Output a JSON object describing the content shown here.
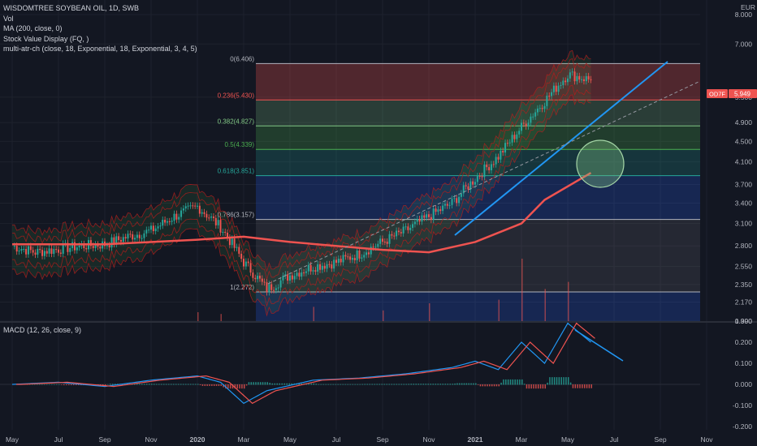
{
  "header": {
    "title": "WISDOMTREE SOYBEAN OIL, 1D, SWB",
    "indicators": [
      "Vol",
      "MA (200, close, 0)",
      "Stock Value Display (FQ, )",
      "multi-atr-ch (close, 18, Exponential, 18, Exponential, 3, 4, 5)"
    ],
    "currency": "EUR",
    "price_badge": {
      "ticker": "OD7F",
      "value": "5.949",
      "color": "#ef5350"
    }
  },
  "macd_panel": {
    "title": "MACD (12, 26, close, 9)",
    "y_ticks": [
      "0.300",
      "0.200",
      "0.100",
      "0.000",
      "-0.100",
      "-0.200"
    ]
  },
  "colors": {
    "background": "#131722",
    "ma200": "#ef5350",
    "trendline": "#2196f3",
    "macd_line": "#2196f3",
    "signal_line": "#ef5350",
    "candle_up": "#26a69a",
    "candle_down": "#ef5350"
  },
  "chart_data": {
    "type": "candlestick",
    "x_ticks": [
      "May",
      "Jul",
      "Sep",
      "Nov",
      "2020",
      "Mar",
      "May",
      "Jul",
      "Sep",
      "Nov",
      "2021",
      "Mar",
      "May",
      "Jul",
      "Sep",
      "Nov"
    ],
    "y_ticks": [
      "8.000",
      "7.000",
      "5.500",
      "4.900",
      "4.500",
      "4.100",
      "3.700",
      "3.400",
      "3.100",
      "2.800",
      "2.550",
      "2.350",
      "2.170",
      "1.990"
    ],
    "y_scale": "log",
    "ylim": [
      1.99,
      8.0
    ],
    "fib_levels": [
      {
        "label": "0(6.406)",
        "value": 6.406,
        "color": "#b2b5be"
      },
      {
        "label": "0.236(5.430)",
        "value": 5.43,
        "color": "#ef5350"
      },
      {
        "label": "0.382(4.827)",
        "value": 4.827,
        "color": "#81c784"
      },
      {
        "label": "0.5(4.339)",
        "value": 4.339,
        "color": "#4caf50"
      },
      {
        "label": "0.618(3.851)",
        "value": 3.851,
        "color": "#26a69a"
      },
      {
        "label": "0.786(3.157)",
        "value": 3.157,
        "color": "#b2b5be"
      },
      {
        "label": "1(2.272)",
        "value": 2.272,
        "color": "#b2b5be"
      }
    ],
    "price_series": [
      [
        "May 2019",
        2.8
      ],
      [
        "Jun 2019",
        2.72
      ],
      [
        "Jul 2019",
        2.76
      ],
      [
        "Aug 2019",
        2.8
      ],
      [
        "Sep 2019",
        2.82
      ],
      [
        "Oct 2019",
        2.92
      ],
      [
        "Nov 2019",
        3.0
      ],
      [
        "Dec 2019",
        3.2
      ],
      [
        "Jan 2020",
        3.35
      ],
      [
        "Feb 2020",
        3.05
      ],
      [
        "Mar 2020",
        2.6
      ],
      [
        "Apr 2020",
        2.3
      ],
      [
        "May 2020",
        2.45
      ],
      [
        "Jun 2020",
        2.55
      ],
      [
        "Jul 2020",
        2.6
      ],
      [
        "Aug 2020",
        2.7
      ],
      [
        "Sep 2020",
        2.85
      ],
      [
        "Oct 2020",
        3.0
      ],
      [
        "Nov 2020",
        3.2
      ],
      [
        "Dec 2020",
        3.4
      ],
      [
        "Jan 2021",
        3.8
      ],
      [
        "Feb 2021",
        4.2
      ],
      [
        "Mar 2021",
        4.8
      ],
      [
        "Apr 2021",
        5.4
      ],
      [
        "May 2021",
        6.1
      ],
      [
        "Jun 2021",
        5.95
      ]
    ],
    "ma200_series": [
      [
        "May 2019",
        2.82
      ],
      [
        "Sep 2019",
        2.82
      ],
      [
        "Jan 2020",
        2.88
      ],
      [
        "Mar 2020",
        2.92
      ],
      [
        "May 2020",
        2.85
      ],
      [
        "Sep 2020",
        2.75
      ],
      [
        "Nov 2020",
        2.72
      ],
      [
        "Jan 2021",
        2.85
      ],
      [
        "Mar 2021",
        3.1
      ],
      [
        "Apr 2021",
        3.45
      ],
      [
        "Jun 2021",
        3.9
      ]
    ],
    "volume_series": [
      [
        "Jan 2020",
        0.05
      ],
      [
        "Feb 2020",
        0.04
      ],
      [
        "Jun 2020",
        0.08
      ],
      [
        "Sep 2020",
        0.06
      ],
      [
        "Nov 2020",
        0.1
      ],
      [
        "Feb 2021",
        0.12
      ],
      [
        "Mar 2021",
        0.35
      ],
      [
        "Apr 2021",
        0.18
      ],
      [
        "May 2021",
        0.22
      ]
    ],
    "macd_series": [
      [
        "May 2019",
        0.0
      ],
      [
        "Jul 2019",
        0.01
      ],
      [
        "Sep 2019",
        -0.01
      ],
      [
        "Nov 2019",
        0.02
      ],
      [
        "Jan 2020",
        0.04
      ],
      [
        "Feb 2020",
        0.01
      ],
      [
        "Mar 2020",
        -0.09
      ],
      [
        "Apr 2020",
        -0.03
      ],
      [
        "Jun 2020",
        0.02
      ],
      [
        "Aug 2020",
        0.03
      ],
      [
        "Oct 2020",
        0.05
      ],
      [
        "Dec 2020",
        0.08
      ],
      [
        "Jan 2021",
        0.11
      ],
      [
        "Feb 2021",
        0.07
      ],
      [
        "Mar 2021",
        0.2
      ],
      [
        "Apr 2021",
        0.1
      ],
      [
        "May 2021",
        0.29
      ],
      [
        "Jun 2021",
        0.2
      ]
    ]
  }
}
